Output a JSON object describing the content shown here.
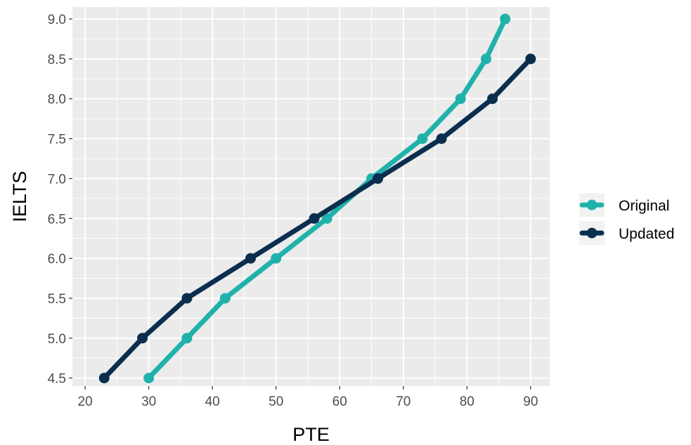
{
  "chart_data": {
    "type": "line",
    "xlabel": "PTE",
    "ylabel": "IELTS",
    "xlim": [
      18,
      93
    ],
    "ylim": [
      4.4,
      9.15
    ],
    "x_ticks": [
      20,
      30,
      40,
      50,
      60,
      70,
      80,
      90
    ],
    "y_ticks": [
      4.5,
      5.0,
      5.5,
      6.0,
      6.5,
      7.0,
      7.5,
      8.0,
      8.5,
      9.0
    ],
    "x_tick_labels": [
      "20",
      "30",
      "40",
      "50",
      "60",
      "70",
      "80",
      "90"
    ],
    "y_tick_labels": [
      "4.5",
      "5.0",
      "5.5",
      "6.0",
      "6.5",
      "7.0",
      "7.5",
      "8.0",
      "8.5",
      "9.0"
    ],
    "grid": true,
    "legend_position": "right",
    "series": [
      {
        "name": "Original",
        "color": "#20b2aa",
        "x": [
          30,
          36,
          42,
          50,
          58,
          65,
          73,
          79,
          83,
          86
        ],
        "y": [
          4.5,
          5.0,
          5.5,
          6.0,
          6.5,
          7.0,
          7.5,
          8.0,
          8.5,
          9.0
        ]
      },
      {
        "name": "Updated",
        "color": "#0b2e4f",
        "x": [
          23,
          29,
          36,
          46,
          56,
          66,
          76,
          84,
          90
        ],
        "y": [
          4.5,
          5.0,
          5.5,
          6.0,
          6.5,
          7.0,
          7.5,
          8.0,
          8.5
        ]
      }
    ]
  }
}
